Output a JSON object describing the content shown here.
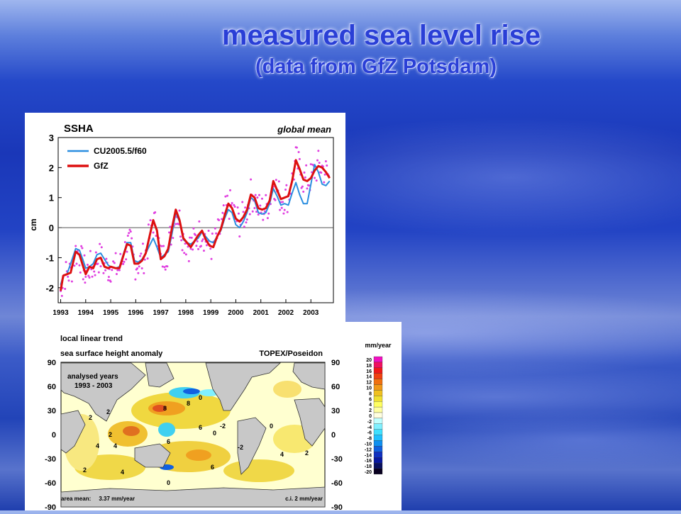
{
  "slide": {
    "title": "measured sea level rise",
    "subtitle": "(data from GfZ Potsdam)"
  },
  "colors": {
    "title": "#2a3fd6",
    "cu_series": "#2a8ee0",
    "gfz_series": "#dd1010",
    "monthly_points": "#e040e0",
    "zero_line": "#555555"
  },
  "chart_data": [
    {
      "type": "line",
      "title": "SSHA",
      "subtitle": "global mean",
      "ylabel": "cm",
      "xlabel": "",
      "ylim": [
        -2.5,
        3
      ],
      "xlim": [
        1992.9,
        2003.9
      ],
      "yticks": [
        -2,
        -1,
        0,
        1,
        2,
        3
      ],
      "xticks": [
        "1993",
        "1994",
        "1995",
        "1996",
        "1997",
        "1998",
        "1999",
        "2000",
        "2001",
        "2002",
        "2003"
      ],
      "grid": false,
      "legend": "top-left",
      "zero_line": true,
      "series": [
        {
          "name": "CU2005.5/f60",
          "x": [
            1993.0,
            1993.1,
            1993.25,
            1993.4,
            1993.6,
            1993.75,
            1993.9,
            1994.0,
            1994.15,
            1994.3,
            1994.45,
            1994.6,
            1994.75,
            1994.9,
            1995.0,
            1995.2,
            1995.35,
            1995.5,
            1995.65,
            1995.8,
            1995.95,
            1996.1,
            1996.25,
            1996.4,
            1996.55,
            1996.7,
            1996.85,
            1997.0,
            1997.15,
            1997.3,
            1997.45,
            1997.6,
            1997.75,
            1997.9,
            1998.05,
            1998.2,
            1998.35,
            1998.5,
            1998.65,
            1998.8,
            1998.95,
            1999.1,
            1999.25,
            1999.4,
            1999.55,
            1999.7,
            1999.85,
            2000.0,
            2000.15,
            2000.3,
            2000.45,
            2000.6,
            2000.75,
            2000.9,
            2001.05,
            2001.2,
            2001.35,
            2001.5,
            2001.65,
            2001.8,
            2001.95,
            2002.1,
            2002.25,
            2002.4,
            2002.55,
            2002.7,
            2002.85,
            2003.0,
            2003.15,
            2003.3,
            2003.45,
            2003.6,
            2003.75
          ],
          "values": [
            -1.9,
            -1.6,
            -1.55,
            -1.2,
            -0.7,
            -0.75,
            -1.1,
            -1.35,
            -1.3,
            -1.2,
            -0.9,
            -0.85,
            -1.05,
            -1.25,
            -1.3,
            -1.35,
            -1.3,
            -0.9,
            -0.5,
            -0.5,
            -1.1,
            -1.15,
            -1.05,
            -0.85,
            -0.6,
            -0.35,
            -0.65,
            -1.0,
            -0.9,
            -0.8,
            -0.2,
            0.5,
            0.2,
            -0.4,
            -0.5,
            -0.55,
            -0.45,
            -0.35,
            -0.15,
            -0.3,
            -0.45,
            -0.5,
            -0.3,
            -0.1,
            0.3,
            0.6,
            0.5,
            0.1,
            0.0,
            0.2,
            0.5,
            1.0,
            0.9,
            0.5,
            0.45,
            0.5,
            0.8,
            1.3,
            1.05,
            0.75,
            0.8,
            0.75,
            1.15,
            1.5,
            1.1,
            0.8,
            0.8,
            1.45,
            2.1,
            1.85,
            1.45,
            1.4,
            1.55
          ]
        },
        {
          "name": "GfZ",
          "x": [
            1993.0,
            1993.1,
            1993.25,
            1993.4,
            1993.6,
            1993.75,
            1993.9,
            1994.0,
            1994.15,
            1994.3,
            1994.45,
            1994.6,
            1994.75,
            1994.9,
            1995.0,
            1995.2,
            1995.35,
            1995.5,
            1995.65,
            1995.8,
            1995.95,
            1996.1,
            1996.25,
            1996.4,
            1996.55,
            1996.7,
            1996.85,
            1997.0,
            1997.15,
            1997.3,
            1997.45,
            1997.6,
            1997.75,
            1997.9,
            1998.05,
            1998.2,
            1998.35,
            1998.5,
            1998.65,
            1998.8,
            1998.95,
            1999.1,
            1999.25,
            1999.4,
            1999.55,
            1999.7,
            1999.85,
            2000.0,
            2000.15,
            2000.3,
            2000.45,
            2000.6,
            2000.75,
            2000.9,
            2001.05,
            2001.2,
            2001.35,
            2001.5,
            2001.65,
            2001.8,
            2001.95,
            2002.1,
            2002.25,
            2002.4,
            2002.55,
            2002.7,
            2002.85,
            2003.0,
            2003.15,
            2003.3,
            2003.45,
            2003.6,
            2003.75
          ],
          "values": [
            -2.1,
            -1.6,
            -1.55,
            -1.5,
            -0.8,
            -0.9,
            -1.3,
            -1.55,
            -1.3,
            -1.35,
            -1.05,
            -1.0,
            -1.3,
            -1.35,
            -1.3,
            -1.35,
            -1.35,
            -0.95,
            -0.55,
            -0.6,
            -1.2,
            -1.2,
            -1.1,
            -0.85,
            -0.3,
            0.25,
            -0.1,
            -1.05,
            -0.95,
            -0.7,
            0.0,
            0.6,
            0.25,
            -0.35,
            -0.5,
            -0.65,
            -0.45,
            -0.25,
            -0.1,
            -0.4,
            -0.6,
            -0.65,
            -0.3,
            -0.05,
            0.4,
            0.8,
            0.65,
            0.3,
            0.2,
            0.35,
            0.6,
            1.1,
            1.0,
            0.65,
            0.6,
            0.65,
            0.9,
            1.55,
            1.25,
            0.95,
            1.0,
            1.05,
            1.55,
            2.25,
            1.95,
            1.6,
            1.55,
            1.65,
            1.9,
            2.05,
            2.0,
            1.85,
            1.65
          ]
        }
      ]
    },
    {
      "type": "heatmap",
      "title": "local linear trend",
      "subtitle": "sea surface height anomaly",
      "source_label": "TOPEX/Poseidon",
      "annotation": "analysed years",
      "annotation_years": "1993 - 2003",
      "footer_left": "area mean:     3.37 mm/year",
      "footer_right": "c.i. 2 mm/year",
      "colorbar_unit": "mm/year",
      "ylim": [
        -90,
        90
      ],
      "yticks": [
        "90",
        "60",
        "30",
        "0",
        "-30",
        "-60",
        "-90"
      ],
      "colorbar_ticks": [
        "20",
        "18",
        "16",
        "14",
        "12",
        "10",
        "8",
        "6",
        "4",
        "2",
        "0",
        "-2",
        "-4",
        "-6",
        "-8",
        "-10",
        "-12",
        "-14",
        "-16",
        "-18",
        "-20"
      ],
      "colorbar_colors": [
        "#f010c0",
        "#f01060",
        "#f01818",
        "#f04010",
        "#f07010",
        "#f09818",
        "#f0c020",
        "#f0e030",
        "#ffff60",
        "#ffffa0",
        "#ffffe0",
        "#c0ffff",
        "#80f0ff",
        "#40e0ff",
        "#20c0ff",
        "#1090f0",
        "#1060e0",
        "#1030c0",
        "#0818a0",
        "#081060",
        "#080020"
      ],
      "contour_labels": [
        "2",
        "2",
        "2",
        "4",
        "4",
        "4",
        "6",
        "6",
        "6",
        "8",
        "0",
        "0",
        "0",
        "-2",
        "-2",
        "2",
        "2",
        "4",
        "8",
        "0"
      ]
    }
  ]
}
